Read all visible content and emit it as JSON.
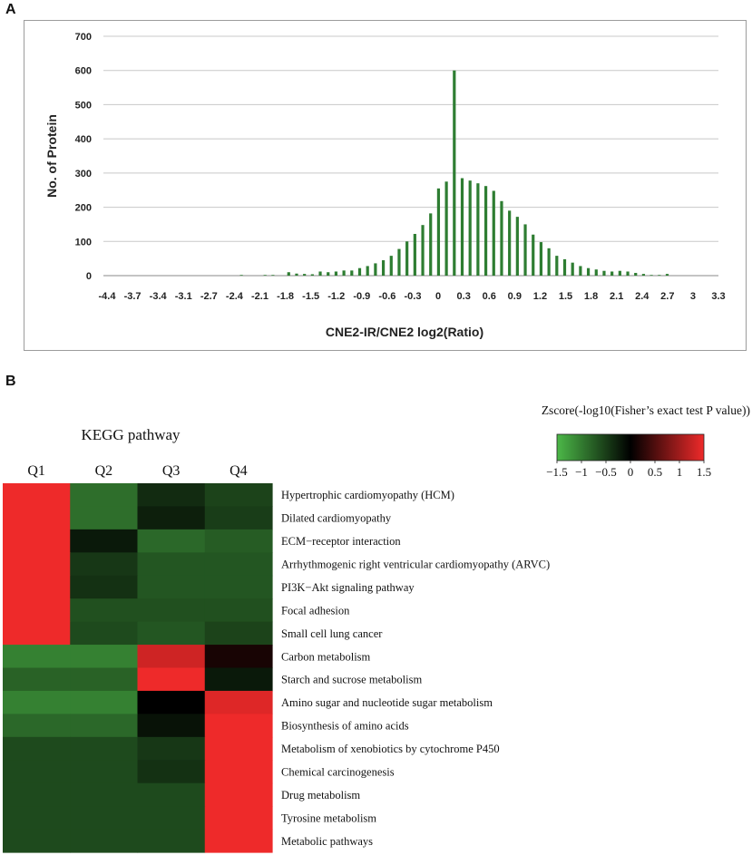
{
  "panels": {
    "a": "A",
    "b": "B"
  },
  "chart_data": [
    {
      "type": "bar",
      "title": "",
      "xlabel": "CNE2-IR/CNE2 log2(Ratio)",
      "ylabel": "No. of Protein",
      "ylim": [
        0,
        700
      ],
      "yticks": [
        "0",
        "100",
        "200",
        "300",
        "400",
        "500",
        "600",
        "700"
      ],
      "xticks": [
        "-4.4",
        "-3.7",
        "-3.4",
        "-3.1",
        "-2.7",
        "-2.4",
        "-2.1",
        "-1.8",
        "-1.5",
        "-1.2",
        "-0.9",
        "-0.6",
        "-0.3",
        "0",
        "0.3",
        "0.6",
        "0.9",
        "1.2",
        "1.5",
        "1.8",
        "2.1",
        "2.4",
        "2.7",
        "3",
        "3.3"
      ],
      "categories": [
        "-4.4",
        "-4.3",
        "-4.2",
        "-4.1",
        "-4.0",
        "-3.9",
        "-3.8",
        "-3.7",
        "-3.6",
        "-3.5",
        "-3.4",
        "-3.3",
        "-3.2",
        "-3.1",
        "-3.0",
        "-2.9",
        "-2.8",
        "-2.7",
        "-2.6",
        "-2.5",
        "-2.4",
        "-2.3",
        "-2.2",
        "-2.1",
        "-2.0",
        "-1.9",
        "-1.8",
        "-1.7",
        "-1.6",
        "-1.5",
        "-1.4",
        "-1.3",
        "-1.2",
        "-1.1",
        "-1.0",
        "-0.9",
        "-0.8",
        "-0.7",
        "-0.6",
        "-0.5",
        "-0.4",
        "-0.3",
        "-0.2",
        "-0.1",
        "0",
        "0.1",
        "0.2",
        "0.3",
        "0.4",
        "0.5",
        "0.6",
        "0.7",
        "0.8",
        "0.9",
        "1.0",
        "1.1",
        "1.2",
        "1.3",
        "1.4",
        "1.5",
        "1.6",
        "1.7",
        "1.8",
        "1.9",
        "2.0",
        "2.1",
        "2.2",
        "2.3",
        "2.4",
        "2.5",
        "2.6",
        "2.7",
        "2.8",
        "2.9",
        "3.0",
        "3.1",
        "3.2",
        "3.3"
      ],
      "values": [
        0,
        0,
        0,
        0,
        0,
        0,
        0,
        0,
        0,
        0,
        0,
        0,
        0,
        0,
        0,
        0,
        0,
        2,
        0,
        0,
        2,
        2,
        0,
        10,
        6,
        5,
        4,
        12,
        10,
        12,
        15,
        15,
        22,
        28,
        36,
        45,
        58,
        78,
        100,
        122,
        148,
        182,
        255,
        275,
        600,
        285,
        278,
        270,
        262,
        248,
        218,
        190,
        172,
        150,
        120,
        98,
        80,
        58,
        48,
        38,
        28,
        22,
        18,
        14,
        12,
        14,
        12,
        8,
        5,
        2,
        2,
        5,
        0,
        0,
        0,
        0,
        0,
        0
      ]
    },
    {
      "type": "heatmap",
      "title": "KEGG pathway",
      "columns": [
        "Q1",
        "Q2",
        "Q3",
        "Q4"
      ],
      "rows": [
        "Hypertrophic cardiomyopathy (HCM)",
        "Dilated cardiomyopathy",
        "ECM−receptor interaction",
        "Arrhythmogenic right ventricular cardiomyopathy (ARVC)",
        "PI3K−Akt signaling pathway",
        "Focal adhesion",
        "Small cell lung cancer",
        "Carbon metabolism",
        "Starch and sucrose metabolism",
        "Amino sugar and nucleotide sugar metabolism",
        "Biosynthesis of amino acids",
        "Metabolism of xenobiotics by cytochrome P450",
        "Chemical carcinogenesis",
        "Drug metabolism",
        "Tyrosine metabolism",
        "Metabolic pathways"
      ],
      "values": [
        [
          1.5,
          -0.9,
          -0.35,
          -0.55
        ],
        [
          1.5,
          -0.9,
          -0.25,
          -0.5
        ],
        [
          1.5,
          -0.2,
          -0.85,
          -0.75
        ],
        [
          1.5,
          -0.45,
          -0.7,
          -0.7
        ],
        [
          1.5,
          -0.4,
          -0.7,
          -0.7
        ],
        [
          1.5,
          -0.65,
          -0.65,
          -0.65
        ],
        [
          1.5,
          -0.6,
          -0.7,
          -0.55
        ],
        [
          -1.05,
          -1.05,
          1.3,
          0.15
        ],
        [
          -0.8,
          -0.8,
          1.5,
          -0.2
        ],
        [
          -1.05,
          -1.05,
          0.0,
          1.4
        ],
        [
          -0.85,
          -0.85,
          -0.15,
          1.5
        ],
        [
          -0.6,
          -0.6,
          -0.45,
          1.5
        ],
        [
          -0.6,
          -0.6,
          -0.4,
          1.5
        ],
        [
          -0.6,
          -0.6,
          -0.6,
          1.5
        ],
        [
          -0.6,
          -0.6,
          -0.6,
          1.5
        ],
        [
          -0.6,
          -0.6,
          -0.6,
          1.5
        ]
      ],
      "legend": {
        "title": "Zscore(-log10(Fisher’s exact test P value))",
        "ticks": [
          "−1.5",
          "−1",
          "−0.5",
          "0",
          "0.5",
          "1",
          "1.5"
        ],
        "range": [
          -1.5,
          1.5
        ],
        "colors": {
          "low": "#4cb848",
          "mid": "#000000",
          "high": "#ee2a2a"
        }
      }
    }
  ],
  "colors": {
    "bar": "#2e7d32",
    "grid": "#c8c8c8",
    "axis": "#888888"
  }
}
